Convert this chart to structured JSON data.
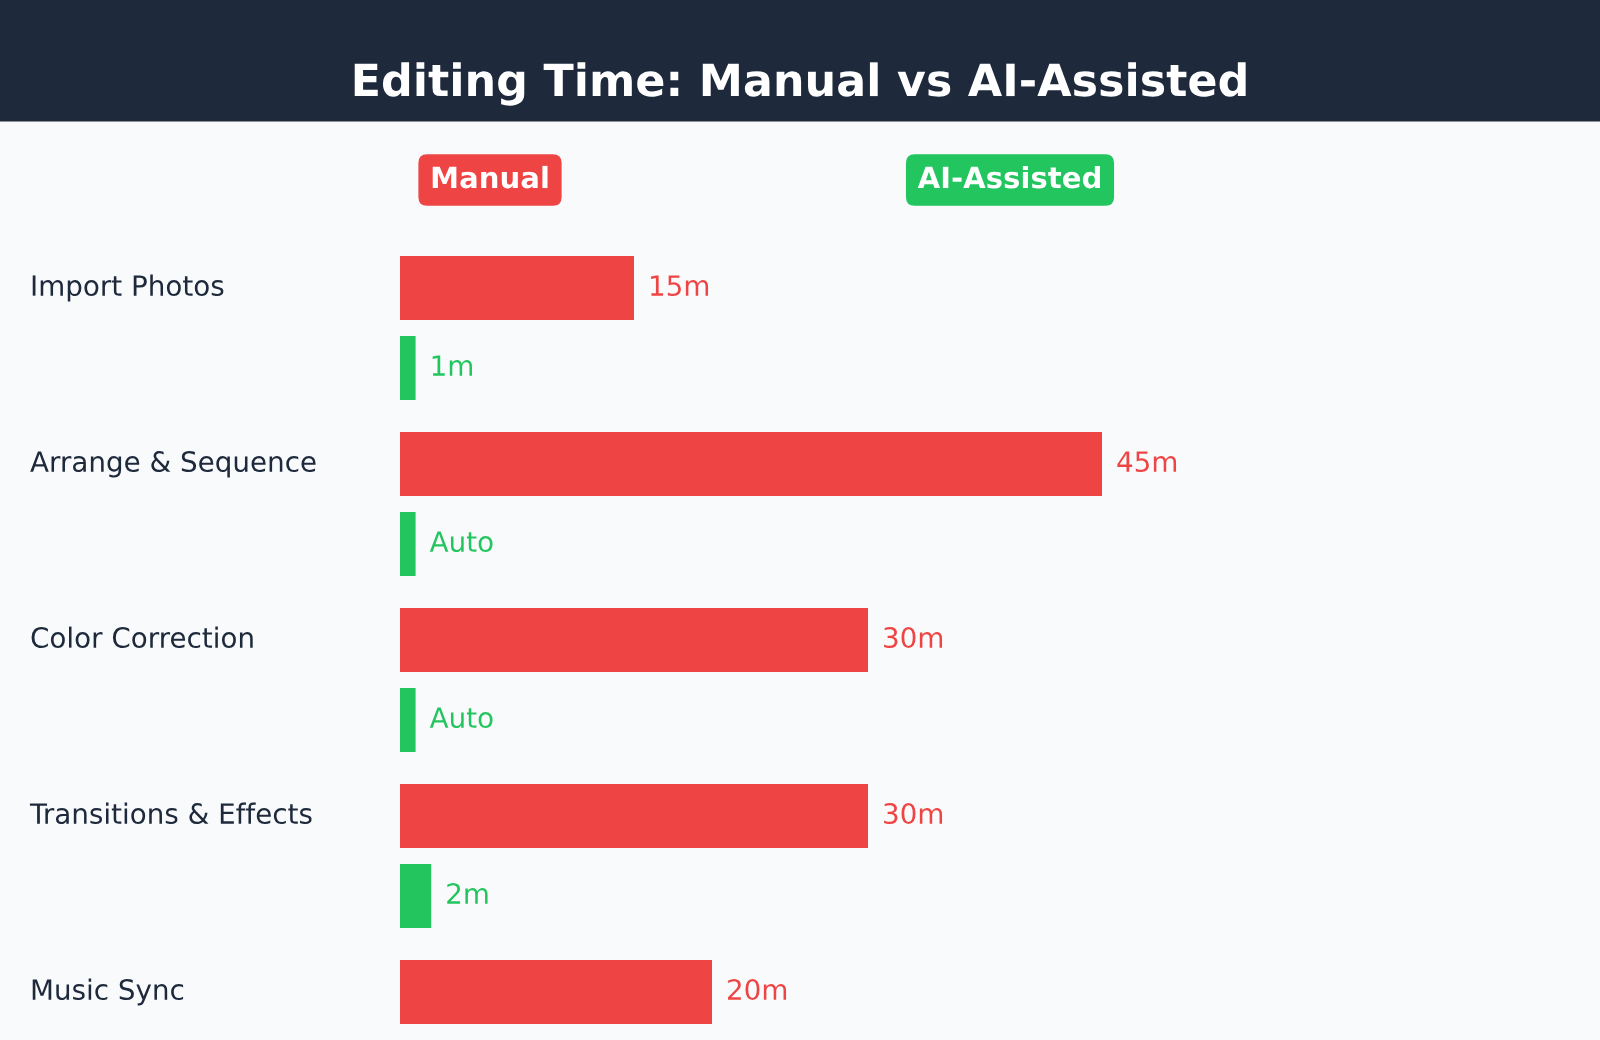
{
  "chart_data": {
    "type": "bar",
    "orientation": "horizontal",
    "title": "Editing Time: Manual vs AI-Assisted",
    "categories": [
      "Import Photos",
      "Arrange & Sequence",
      "Color Correction",
      "Transitions & Effects",
      "Music Sync"
    ],
    "series": [
      {
        "name": "Manual",
        "color": "#ef4444",
        "values": [
          15,
          45,
          30,
          30,
          20
        ],
        "value_labels": [
          "15m",
          "45m",
          "30m",
          "30m",
          "20m"
        ]
      },
      {
        "name": "AI-Assisted",
        "color": "#22c55e",
        "values": [
          1,
          1,
          1,
          2,
          null
        ],
        "value_labels": [
          "1m",
          "Auto",
          "Auto",
          "2m",
          null
        ]
      }
    ],
    "legend": "top"
  }
}
